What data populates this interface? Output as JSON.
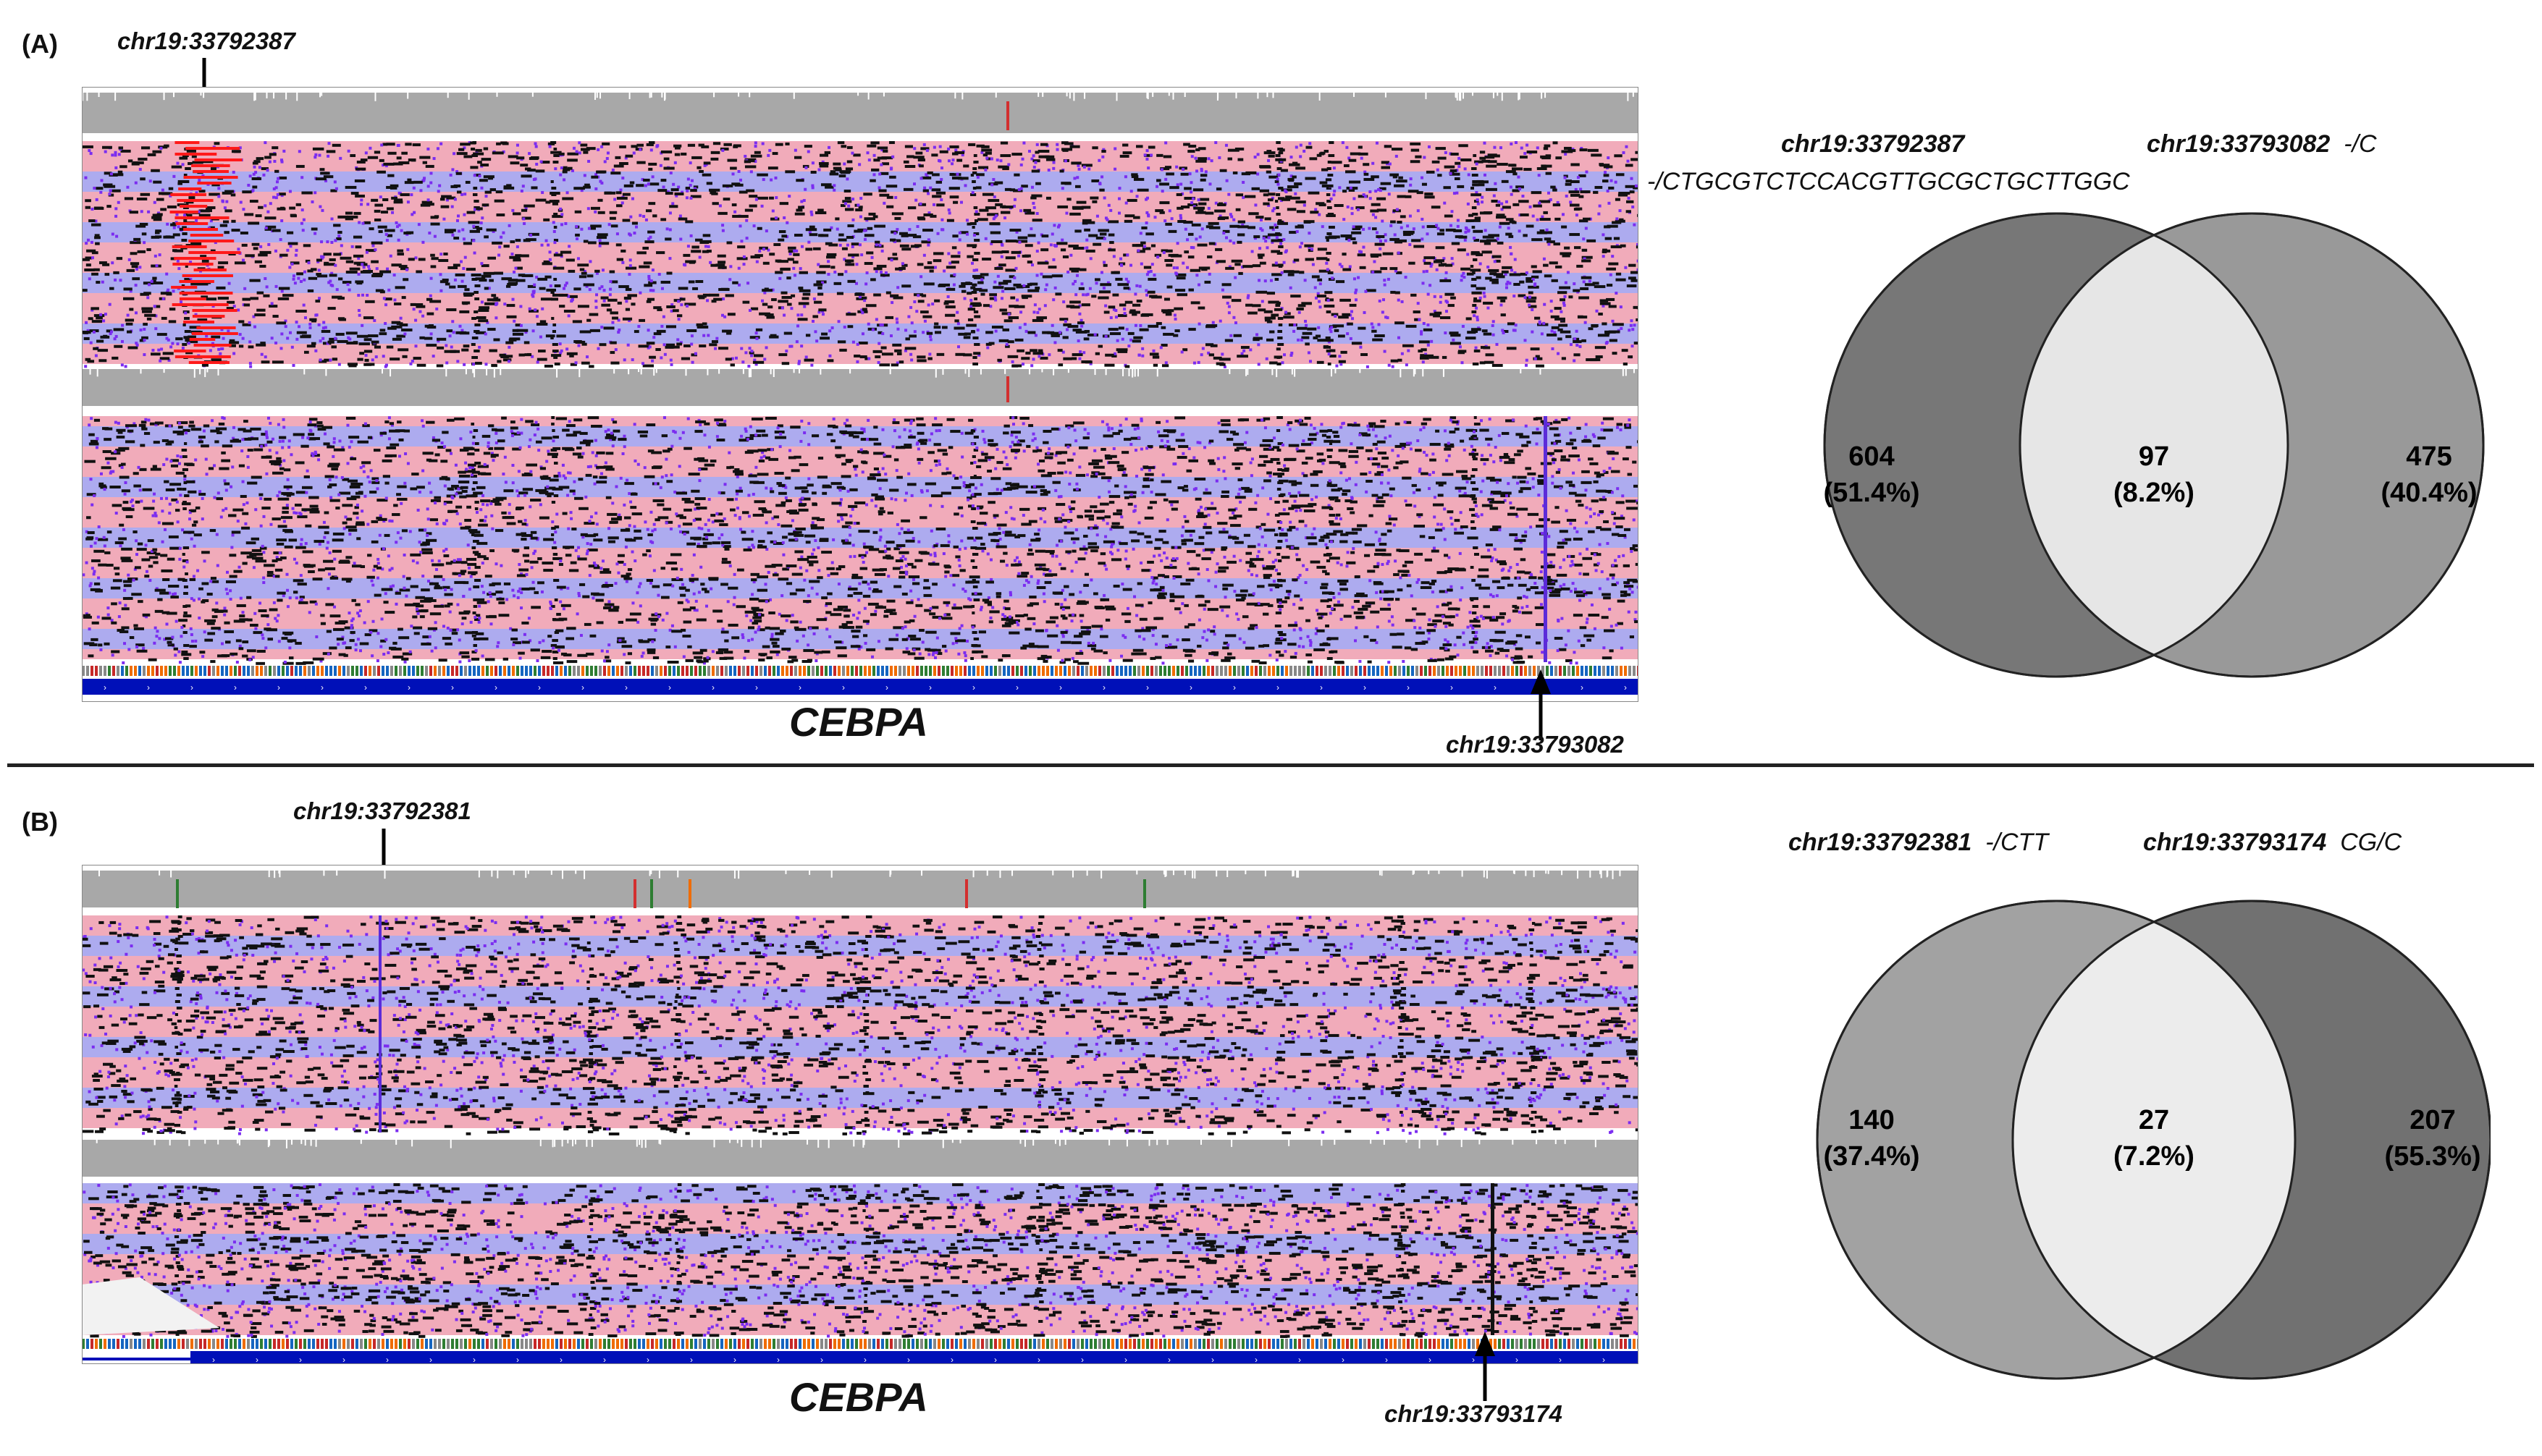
{
  "panels": [
    {
      "id": "A",
      "label": "(A)",
      "gene": "CEBPA",
      "top_marker": "chr19:33792387",
      "bottom_marker": "chr19:33793082",
      "venn": {
        "left_header_loc": "chr19:33792387",
        "left_header_mut": "-/CTGCGTCTCCACGTTGCGCTGCTTGGC",
        "right_header_loc": "chr19:33793082",
        "right_header_mut": "-/C",
        "left": {
          "count": "604",
          "percent": "(51.4%)",
          "color": "#777777"
        },
        "overlap": {
          "count": "97",
          "percent": "(8.2%)",
          "color": "#e6e6e6"
        },
        "right": {
          "count": "475",
          "percent": "(40.4%)",
          "color": "#999999"
        }
      }
    },
    {
      "id": "B",
      "label": "(B)",
      "gene": "CEBPA",
      "top_marker": "chr19:33792381",
      "bottom_marker": "chr19:33793174",
      "venn": {
        "left_header_loc": "chr19:33792381",
        "left_header_mut": "-/CTT",
        "right_header_loc": "chr19:33793174",
        "right_header_mut": "CG/C",
        "left": {
          "count": "140",
          "percent": "(37.4%)",
          "color": "#a2a2a2"
        },
        "overlap": {
          "count": "27",
          "percent": "(7.2%)",
          "color": "#ececec"
        },
        "right": {
          "count": "207",
          "percent": "(55.3%)",
          "color": "#717171"
        }
      }
    }
  ],
  "colors": {
    "coverage_gray": "#a8a8a8",
    "read_pink": "#f0a6b6",
    "read_blue": "#a9a6ee",
    "mismatch_black": "#111111",
    "insertion_purple": "#7b2cf0",
    "deletion_red": "#ff1a1a",
    "gene_blue": "#0010b8"
  }
}
